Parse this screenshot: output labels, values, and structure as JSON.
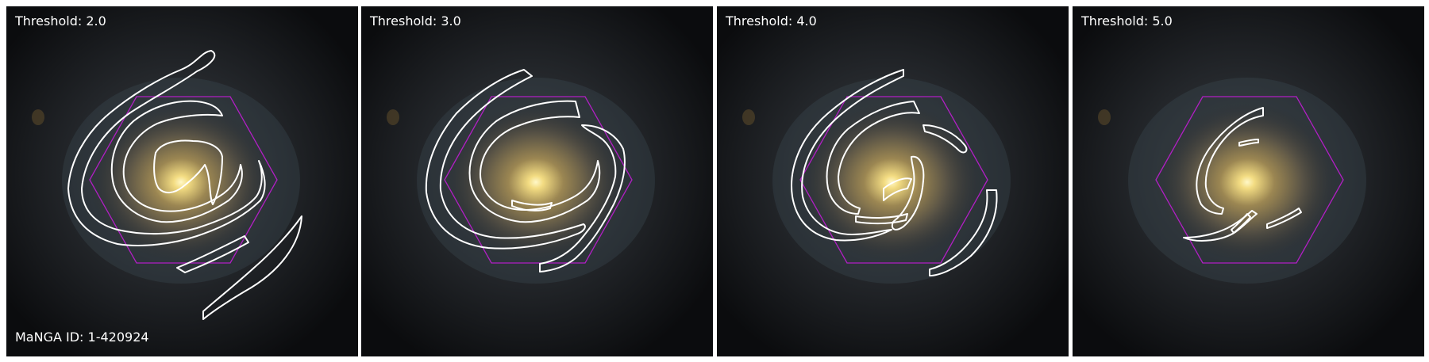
{
  "panels": [
    {
      "threshold_label": "Threshold: 2.0",
      "id_label": "MaNGA ID: 1-420924"
    },
    {
      "threshold_label": "Threshold: 3.0"
    },
    {
      "threshold_label": "Threshold: 4.0"
    },
    {
      "threshold_label": "Threshold: 5.0"
    }
  ],
  "colors": {
    "contour": "#ffffff",
    "ifu_hexagon": "#b11fc4",
    "galaxy_core": "#fff3b0",
    "background": "#0a0b0d"
  },
  "icons": {
    "contour": "contour-outline",
    "hexagon": "ifu-hexagon-footprint"
  }
}
